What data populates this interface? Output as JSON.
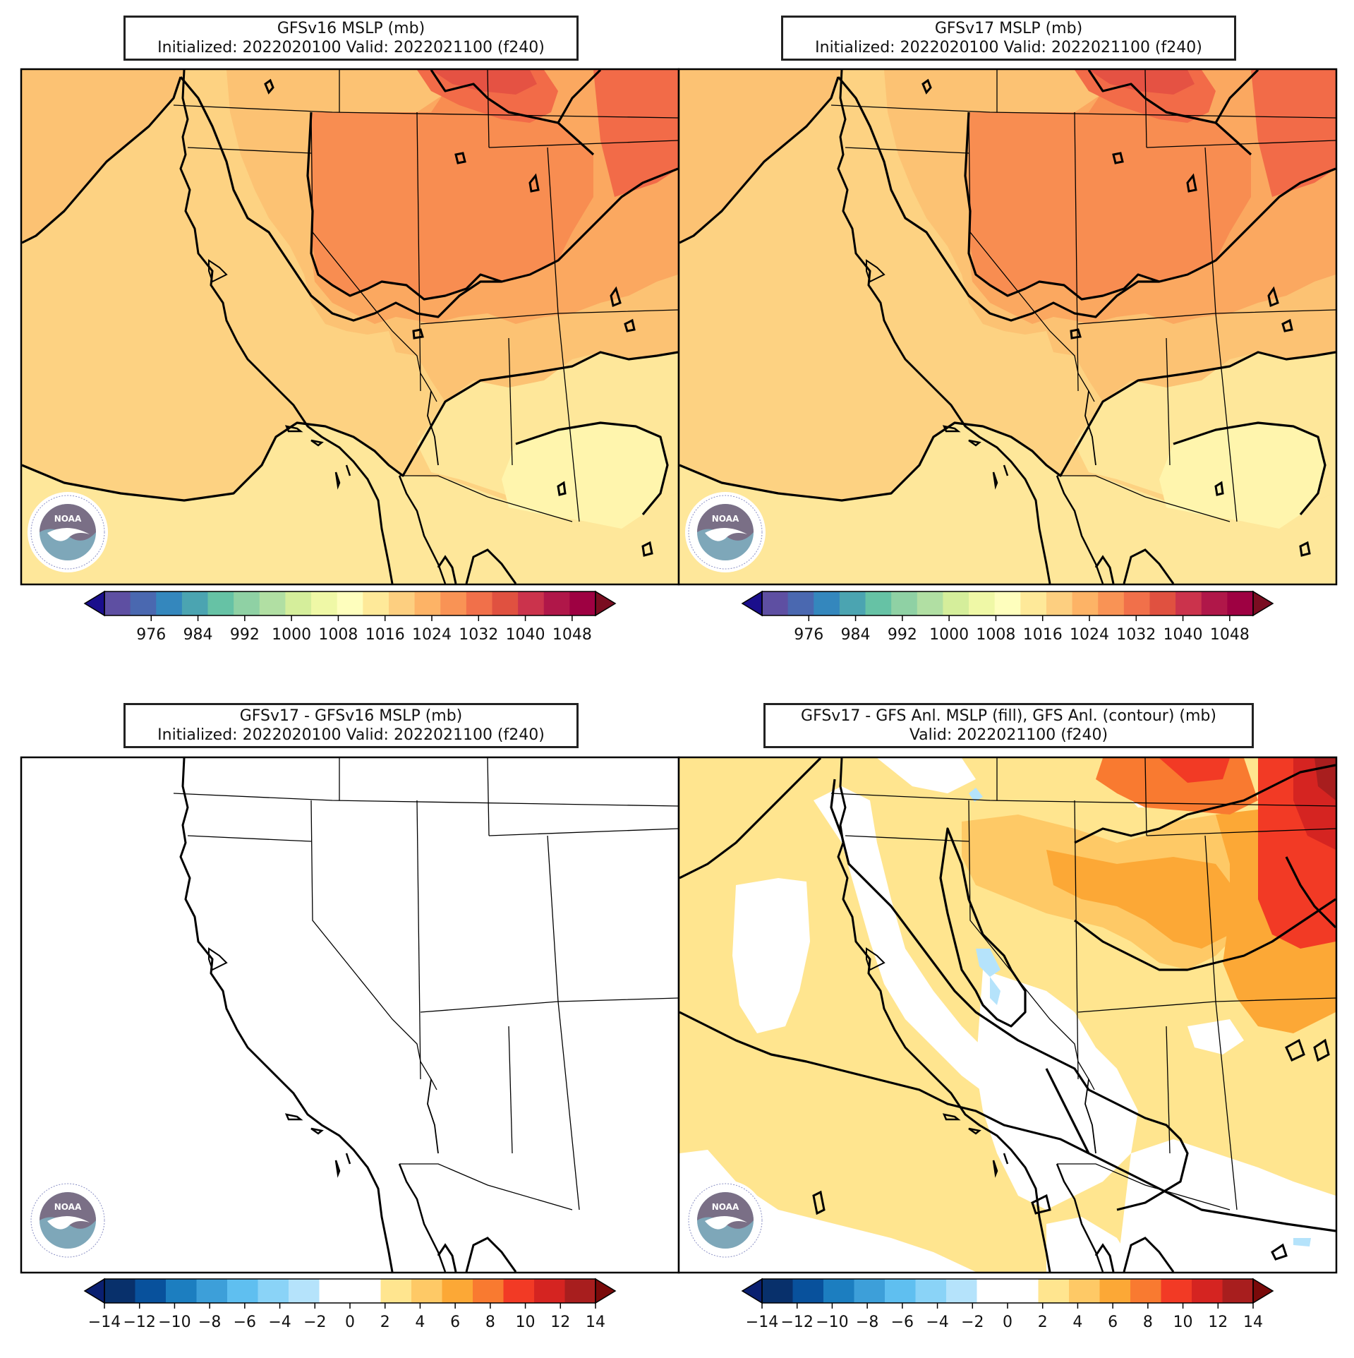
{
  "panels": [
    {
      "id": "top-left",
      "title_line1": "GFSv16 MSLP (mb)",
      "title_line2": "Initialized: 2022020100 Valid: 2022021100 (f240)",
      "fill": "mslp",
      "logo": "noaa-logo"
    },
    {
      "id": "top-right",
      "title_line1": "GFSv17 MSLP (mb)",
      "title_line2": "Initialized: 2022020100 Valid: 2022021100 (f240)",
      "fill": "mslp",
      "logo": "noaa-logo"
    },
    {
      "id": "bottom-left",
      "title_line1": "GFSv17 - GFSv16 MSLP (mb)",
      "title_line2": "Initialized: 2022020100 Valid: 2022021100 (f240)",
      "fill": "none",
      "logo": "noaa-logo"
    },
    {
      "id": "bottom-right",
      "title_line1": "GFSv17 - GFS Anl. MSLP (fill), GFS Anl. (contour) (mb)",
      "title_line2": "Valid: 2022021100 (f240)",
      "fill": "diff",
      "logo": "noaa-logo"
    }
  ],
  "colorbars": {
    "mslp": {
      "ticks": [
        "976",
        "984",
        "992",
        "1000",
        "1008",
        "1016",
        "1024",
        "1032",
        "1040",
        "1048"
      ],
      "tick_values": [
        976,
        984,
        992,
        1000,
        1008,
        1016,
        1024,
        1032,
        1040,
        1048
      ],
      "range": [
        968,
        1052
      ],
      "step": 4,
      "colors": [
        "#5e4fa2",
        "#4a68b0",
        "#3487bd",
        "#4ba4b1",
        "#66c2a5",
        "#8fd1a4",
        "#b1dfa3",
        "#d5ee9b",
        "#eff8a6",
        "#fefebd",
        "#fee999",
        "#fdcf80",
        "#fdb366",
        "#f99355",
        "#f1704a",
        "#e05140",
        "#cb334c",
        "#b01749",
        "#9e0142"
      ],
      "under_color": "#1a0e8c",
      "over_color": "#7a0d21"
    },
    "diff": {
      "ticks": [
        "−14",
        "−12",
        "−10",
        "−8",
        "−6",
        "−4",
        "−2",
        "0",
        "2",
        "4",
        "6",
        "8",
        "10",
        "12",
        "14"
      ],
      "tick_values": [
        -14,
        -12,
        -10,
        -8,
        -6,
        -4,
        -2,
        0,
        2,
        4,
        6,
        8,
        10,
        12,
        14
      ],
      "range": [
        -14,
        14
      ],
      "step": 2,
      "colors": [
        "#08306b",
        "#08519c",
        "#1c7ec0",
        "#3d9fd9",
        "#5fbff0",
        "#8ad3f7",
        "#b5e3fb",
        "#ffffff",
        "#ffffff",
        "#ffe58f",
        "#fec966",
        "#fca836",
        "#f97a30",
        "#f23a25",
        "#d52421",
        "#a81e1e"
      ],
      "under_color": "#0a1f70",
      "over_color": "#7a0a0a"
    }
  },
  "map_fills": {
    "mslp_colors": {
      "c1012": "#fff5ad",
      "c1016": "#fee79a",
      "c1020": "#fdd282",
      "c1024": "#fcc273",
      "c1028": "#fba860",
      "c1032": "#f88d51",
      "c1036": "#f26b48",
      "c1040": "#e55243"
    },
    "diff_colors": {
      "pos2": "#ffe58f",
      "pos4": "#fec966",
      "pos6": "#fca836",
      "pos8": "#f97a30",
      "pos10": "#f23a25",
      "pos12": "#d52421",
      "pos14": "#a81e1e",
      "neg2": "#b5e3fb"
    }
  }
}
